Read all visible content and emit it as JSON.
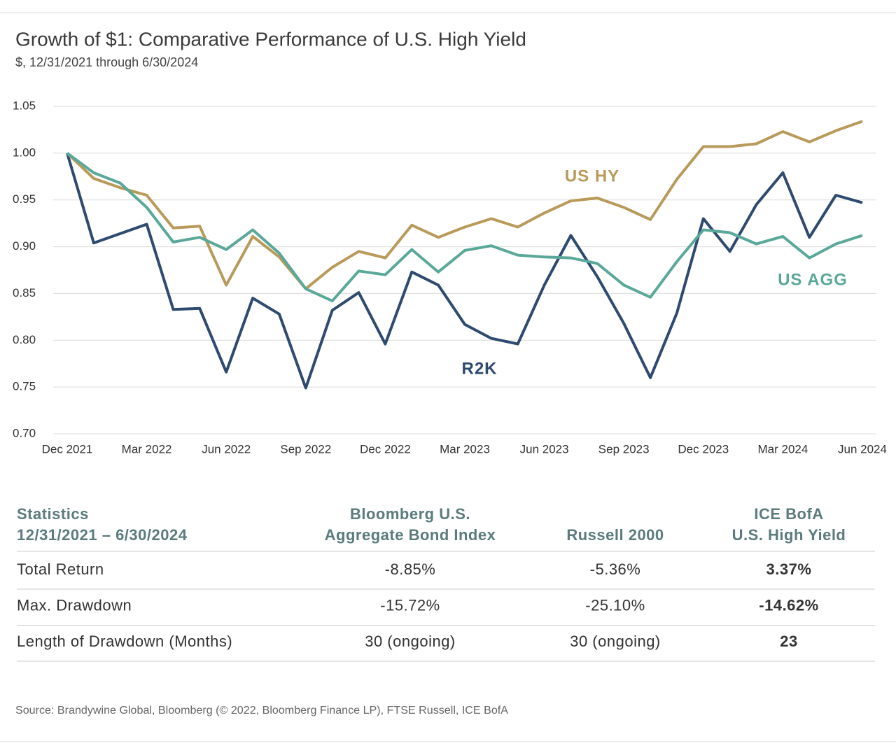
{
  "chart_data": {
    "type": "line",
    "title": "Growth of $1: Comparative Performance of U.S. High Yield",
    "subtitle": "$, 12/31/2021 through 6/30/2024",
    "categories": [
      "Dec 2021",
      null,
      null,
      "Mar 2022",
      null,
      null,
      "Jun 2022",
      null,
      null,
      "Sep 2022",
      null,
      null,
      "Dec 2022",
      null,
      null,
      "Mar 2023",
      null,
      null,
      "Jun 2023",
      null,
      null,
      "Sep 2023",
      null,
      null,
      "Dec 2023",
      null,
      null,
      "Mar 2024",
      null,
      null,
      "Jun 2024"
    ],
    "series": [
      {
        "name": "R2K",
        "color": "#2e4a6e",
        "values": [
          1.0,
          0.904,
          0.914,
          0.924,
          0.833,
          0.834,
          0.766,
          0.845,
          0.828,
          0.749,
          0.832,
          0.851,
          0.796,
          0.873,
          0.859,
          0.817,
          0.802,
          0.796,
          0.859,
          0.912,
          0.868,
          0.818,
          0.76,
          0.829,
          0.93,
          0.895,
          0.945,
          0.979,
          0.91,
          0.955,
          0.947
        ]
      },
      {
        "name": "US HY",
        "color": "#b89a5a",
        "values": [
          1.0,
          0.973,
          0.963,
          0.955,
          0.92,
          0.922,
          0.859,
          0.911,
          0.889,
          0.855,
          0.878,
          0.895,
          0.888,
          0.923,
          0.91,
          0.921,
          0.93,
          0.921,
          0.936,
          0.949,
          0.952,
          0.942,
          0.929,
          0.972,
          1.007,
          1.007,
          1.01,
          1.023,
          1.012,
          1.024,
          1.034
        ]
      },
      {
        "name": "US AGG",
        "color": "#5aa89a",
        "values": [
          1.0,
          0.979,
          0.968,
          0.942,
          0.905,
          0.91,
          0.897,
          0.918,
          0.893,
          0.855,
          0.842,
          0.874,
          0.87,
          0.897,
          0.873,
          0.896,
          0.901,
          0.891,
          0.889,
          0.888,
          0.882,
          0.859,
          0.846,
          0.884,
          0.918,
          0.915,
          0.903,
          0.911,
          0.888,
          0.903,
          0.912
        ]
      }
    ],
    "ylim": [
      0.7,
      1.05
    ],
    "yticks": [
      {
        "value": 0.7,
        "label": "0.70"
      },
      0.75,
      {
        "value": 0.8,
        "label": "0.80"
      },
      0.85,
      {
        "value": 0.9,
        "label": "0.90"
      },
      0.95,
      {
        "value": 1.0,
        "label": "1.00"
      },
      1.05
    ],
    "grid": true
  },
  "table": {
    "header": [
      [
        "Statistics",
        "12/31/2021 – 6/30/2024"
      ],
      [
        "Bloomberg U.S.",
        "Aggregate Bond Index"
      ],
      [
        "Russell 2000"
      ],
      [
        "ICE BofA",
        "U.S. High Yield"
      ]
    ],
    "rows": [
      [
        "Total Return",
        "-8.85%",
        "-5.36%",
        "3.37%"
      ],
      [
        "Max. Drawdown",
        "-15.72%",
        "-25.10%",
        "-14.62%"
      ],
      [
        "Length of Drawdown (Months)",
        "30 (ongoing)",
        "30 (ongoing)",
        "23"
      ]
    ]
  },
  "source": "Source: Brandywine Global, Bloomberg (© 2022, Bloomberg Finance LP), FTSE Russell, ICE BofA"
}
